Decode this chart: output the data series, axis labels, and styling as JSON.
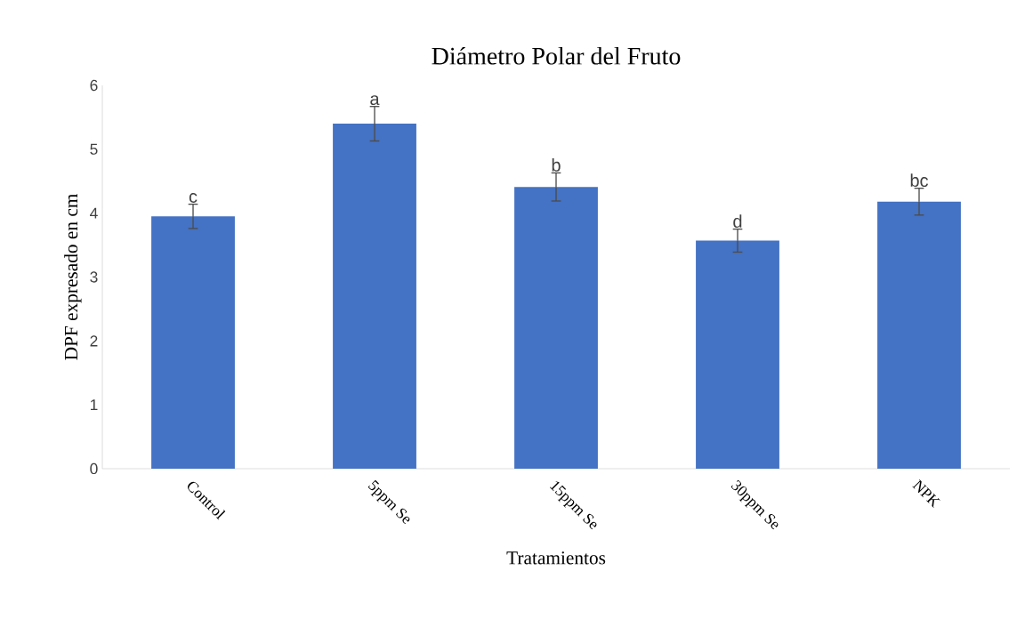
{
  "chart_data": {
    "type": "bar",
    "title": "Diámetro Polar del Fruto",
    "xlabel": "Tratamientos",
    "ylabel": "DPF expresado en cm",
    "categories": [
      "Control",
      "5ppm Se",
      "15ppm Se",
      "30ppm Se",
      "NPK"
    ],
    "values": [
      3.95,
      5.4,
      4.41,
      3.57,
      4.18
    ],
    "errors": [
      0.19,
      0.27,
      0.22,
      0.18,
      0.21
    ],
    "color": "#4472c4",
    "ylim": [
      0,
      6
    ],
    "yticks": [
      0,
      1,
      2,
      3,
      4,
      5,
      6
    ],
    "grid": false,
    "annotations": [
      {
        "text": "c",
        "x": "Control",
        "y": 4.14
      },
      {
        "text": "a",
        "x": "5ppm Se",
        "y": 5.67
      },
      {
        "text": "b",
        "x": "15ppm Se",
        "y": 4.63
      },
      {
        "text": "d",
        "x": "30ppm Se",
        "y": 3.75
      },
      {
        "text": "bc",
        "x": "NPK",
        "y": 4.39
      }
    ]
  }
}
